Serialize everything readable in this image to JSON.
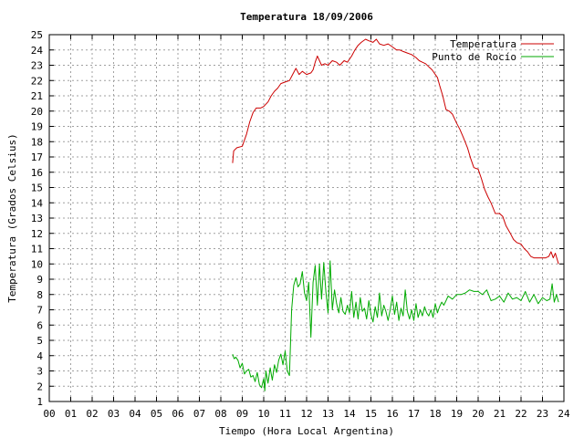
{
  "chart_data": {
    "type": "line",
    "title": "Temperatura 18/09/2006",
    "xlabel": "Tiempo (Hora Local Argentina)",
    "ylabel": "Temperatura (Grados Celsius)",
    "xlim": [
      0,
      24
    ],
    "ylim": [
      1,
      25
    ],
    "x_ticks": [
      "00",
      "01",
      "02",
      "03",
      "04",
      "05",
      "06",
      "07",
      "08",
      "09",
      "10",
      "11",
      "12",
      "13",
      "14",
      "15",
      "16",
      "17",
      "18",
      "19",
      "20",
      "21",
      "22",
      "23",
      "24"
    ],
    "y_ticks": [
      1,
      2,
      3,
      4,
      5,
      6,
      7,
      8,
      9,
      10,
      11,
      12,
      13,
      14,
      15,
      16,
      17,
      18,
      19,
      20,
      21,
      22,
      23,
      24,
      25
    ],
    "grid": true,
    "legend_position": "top-right",
    "series": [
      {
        "name": "Temperatura",
        "color": "#cc0000",
        "x": [
          8.55,
          8.6,
          8.75,
          9.0,
          9.2,
          9.35,
          9.5,
          9.65,
          9.85,
          10.0,
          10.2,
          10.35,
          10.5,
          10.65,
          10.8,
          11.0,
          11.2,
          11.35,
          11.5,
          11.65,
          11.8,
          12.0,
          12.2,
          12.3,
          12.4,
          12.5,
          12.7,
          12.85,
          13.0,
          13.2,
          13.4,
          13.55,
          13.75,
          13.9,
          14.1,
          14.25,
          14.4,
          14.55,
          14.75,
          14.9,
          15.1,
          15.25,
          15.4,
          15.6,
          15.8,
          16.0,
          16.2,
          16.35,
          16.5,
          16.7,
          16.9,
          17.1,
          17.25,
          17.4,
          17.55,
          17.7,
          17.85,
          18.0,
          18.1,
          18.2,
          18.35,
          18.5,
          18.65,
          18.8,
          18.9,
          19.0,
          19.15,
          19.3,
          19.5,
          19.65,
          19.8,
          20.0,
          20.15,
          20.3,
          20.45,
          20.6,
          20.8,
          21.0,
          21.15,
          21.3,
          21.5,
          21.65,
          21.8,
          22.0,
          22.15,
          22.3,
          22.45,
          22.6,
          22.8,
          23.0,
          23.15,
          23.3,
          23.4,
          23.5,
          23.6,
          23.75
        ],
        "values": [
          16.6,
          17.4,
          17.6,
          17.7,
          18.5,
          19.3,
          19.9,
          20.2,
          20.2,
          20.3,
          20.6,
          21.0,
          21.3,
          21.5,
          21.8,
          21.9,
          22.0,
          22.4,
          22.8,
          22.4,
          22.6,
          22.4,
          22.5,
          22.7,
          23.2,
          23.6,
          23.0,
          23.1,
          23.0,
          23.3,
          23.2,
          23.0,
          23.3,
          23.2,
          23.6,
          24.0,
          24.3,
          24.5,
          24.7,
          24.6,
          24.5,
          24.7,
          24.4,
          24.3,
          24.4,
          24.2,
          24.0,
          24.0,
          23.9,
          23.8,
          23.7,
          23.5,
          23.3,
          23.2,
          23.1,
          22.9,
          22.7,
          22.4,
          22.2,
          21.7,
          21.0,
          20.1,
          20.0,
          19.8,
          19.5,
          19.2,
          18.8,
          18.3,
          17.6,
          16.9,
          16.3,
          16.2,
          15.6,
          14.9,
          14.4,
          14.0,
          13.3,
          13.3,
          13.1,
          12.5,
          12.0,
          11.6,
          11.4,
          11.3,
          11.0,
          10.8,
          10.5,
          10.4,
          10.4,
          10.4,
          10.4,
          10.5,
          10.8,
          10.4,
          10.7,
          10.0
        ]
      },
      {
        "name": "Punto de Rocío",
        "color": "#00aa00",
        "x": [
          8.55,
          8.62,
          8.7,
          8.8,
          8.9,
          9.0,
          9.1,
          9.2,
          9.3,
          9.4,
          9.5,
          9.6,
          9.7,
          9.8,
          9.9,
          10.0,
          10.05,
          10.1,
          10.2,
          10.3,
          10.4,
          10.5,
          10.6,
          10.7,
          10.8,
          10.9,
          11.0,
          11.1,
          11.2,
          11.3,
          11.4,
          11.5,
          11.6,
          11.7,
          11.8,
          11.9,
          12.0,
          12.1,
          12.2,
          12.3,
          12.4,
          12.5,
          12.6,
          12.7,
          12.8,
          12.9,
          13.0,
          13.1,
          13.2,
          13.3,
          13.4,
          13.5,
          13.6,
          13.7,
          13.8,
          13.9,
          14.0,
          14.1,
          14.2,
          14.3,
          14.4,
          14.5,
          14.6,
          14.7,
          14.8,
          14.9,
          15.0,
          15.1,
          15.2,
          15.3,
          15.4,
          15.5,
          15.6,
          15.7,
          15.8,
          15.9,
          16.0,
          16.1,
          16.2,
          16.3,
          16.4,
          16.5,
          16.6,
          16.7,
          16.8,
          16.9,
          17.0,
          17.1,
          17.2,
          17.3,
          17.4,
          17.5,
          17.6,
          17.7,
          17.8,
          17.9,
          18.0,
          18.1,
          18.2,
          18.3,
          18.4,
          18.5,
          18.6,
          18.8,
          19.0,
          19.2,
          19.4,
          19.6,
          19.8,
          20.0,
          20.2,
          20.4,
          20.6,
          20.8,
          21.0,
          21.2,
          21.4,
          21.6,
          21.8,
          22.0,
          22.2,
          22.4,
          22.6,
          22.8,
          23.0,
          23.2,
          23.35,
          23.45,
          23.55,
          23.65,
          23.75
        ],
        "values": [
          4.1,
          3.8,
          3.9,
          3.7,
          3.2,
          3.5,
          2.8,
          3.0,
          3.1,
          2.6,
          2.7,
          2.3,
          2.9,
          2.1,
          1.9,
          2.5,
          1.7,
          3.0,
          2.2,
          3.2,
          2.4,
          3.4,
          2.9,
          3.7,
          4.1,
          3.4,
          4.3,
          3.0,
          2.7,
          7.0,
          8.6,
          9.1,
          8.5,
          8.7,
          9.5,
          8.1,
          7.6,
          8.8,
          5.2,
          8.8,
          9.9,
          7.3,
          10.0,
          7.7,
          10.1,
          8.2,
          6.8,
          10.2,
          7.0,
          8.3,
          7.4,
          6.8,
          7.8,
          6.9,
          6.7,
          7.3,
          6.8,
          8.2,
          6.5,
          7.5,
          6.4,
          7.8,
          6.9,
          7.1,
          6.4,
          7.6,
          6.7,
          6.2,
          7.2,
          6.5,
          8.1,
          6.6,
          7.3,
          6.9,
          6.3,
          7.0,
          7.9,
          6.7,
          7.5,
          6.3,
          7.1,
          6.6,
          8.3,
          6.9,
          6.4,
          7.0,
          6.3,
          7.4,
          6.5,
          7.0,
          6.6,
          7.2,
          6.8,
          6.6,
          7.0,
          6.5,
          7.4,
          6.8,
          7.2,
          7.5,
          7.3,
          7.6,
          7.9,
          7.7,
          8.0,
          8.0,
          8.1,
          8.3,
          8.2,
          8.2,
          8.0,
          8.3,
          7.6,
          7.7,
          7.9,
          7.5,
          8.1,
          7.7,
          7.8,
          7.6,
          8.2,
          7.5,
          8.0,
          7.4,
          7.8,
          7.6,
          7.7,
          8.7,
          7.5,
          8.0,
          7.5
        ]
      }
    ]
  }
}
